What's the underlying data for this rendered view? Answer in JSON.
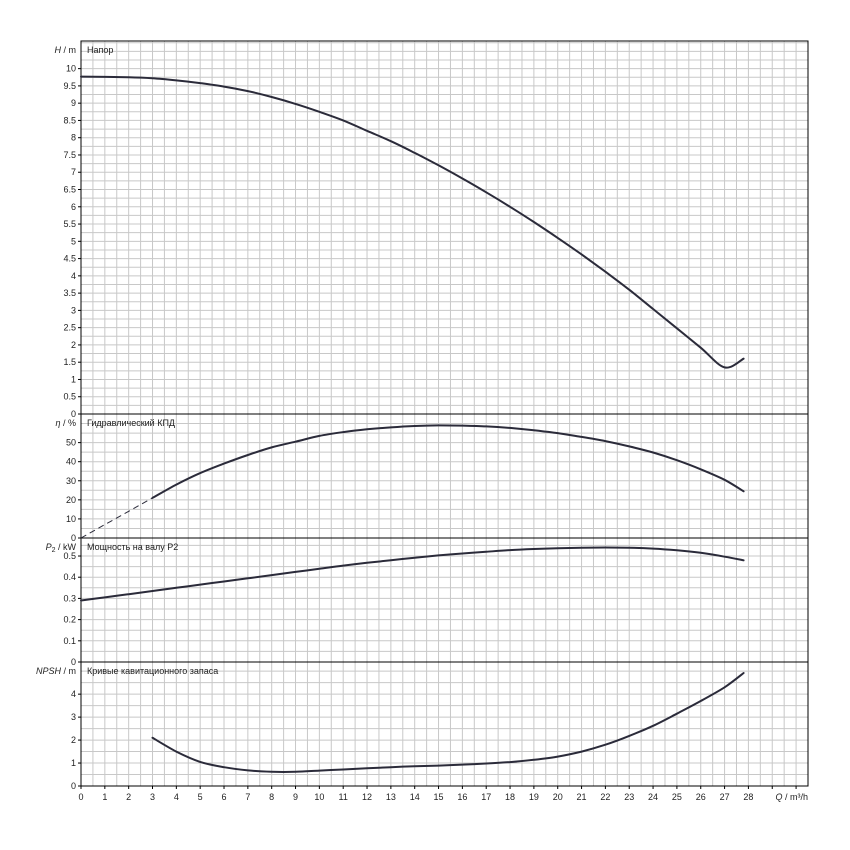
{
  "x_axis": {
    "label": "Q / m³/h",
    "min": 0,
    "max": 30.5,
    "tick_step": 1,
    "label_max": 28,
    "grid_step": 0.5
  },
  "chart_data": [
    {
      "type": "line",
      "title": "Напор",
      "ylabel": "H / m",
      "ylim": [
        0,
        10.8
      ],
      "y_tick_step": 0.5,
      "y_label_max": 10,
      "series": [
        {
          "values_x": [
            0,
            2,
            3,
            4,
            5,
            6,
            7,
            8,
            9,
            10,
            11,
            12,
            13,
            14,
            15,
            16,
            17,
            18,
            19,
            20,
            21,
            22,
            23,
            24,
            25,
            26,
            27,
            27.8
          ],
          "values_y": [
            9.77,
            9.75,
            9.72,
            9.66,
            9.58,
            9.48,
            9.35,
            9.18,
            8.98,
            8.75,
            8.5,
            8.2,
            7.9,
            7.56,
            7.2,
            6.82,
            6.42,
            6.0,
            5.56,
            5.1,
            4.62,
            4.12,
            3.6,
            3.04,
            2.48,
            1.92,
            1.35,
            1.6
          ]
        }
      ]
    },
    {
      "type": "line",
      "title": "Гидравлический КПД",
      "ylabel": "η / %",
      "ylim": [
        0,
        65
      ],
      "y_tick_step": 10,
      "y_label_max": 50,
      "series": [
        {
          "dashed_x": [
            0,
            1,
            2,
            3
          ],
          "dashed_y": [
            0,
            7,
            14,
            21
          ],
          "values_x": [
            3,
            4,
            5,
            6,
            7,
            8,
            9,
            10,
            11,
            12,
            13,
            14,
            15,
            16,
            17,
            18,
            19,
            20,
            21,
            22,
            23,
            24,
            25,
            26,
            27,
            27.8
          ],
          "values_y": [
            21,
            28,
            34,
            39,
            43.5,
            47.5,
            50.5,
            53.5,
            55.5,
            57,
            58,
            58.7,
            59,
            58.9,
            58.5,
            57.7,
            56.5,
            55,
            53,
            50.8,
            48,
            44.8,
            40.8,
            36,
            30.5,
            24.5
          ]
        }
      ]
    },
    {
      "type": "line",
      "title": "Мощность на валу P2",
      "ylabel_main": "P",
      "ylabel_sub": "2",
      "ylabel_unit": " / kW",
      "ylim": [
        0,
        0.585
      ],
      "y_tick_step": 0.1,
      "y_label_max": 0.5,
      "series": [
        {
          "values_x": [
            0,
            1,
            2,
            3,
            4,
            5,
            6,
            7,
            8,
            9,
            10,
            11,
            12,
            13,
            14,
            15,
            16,
            17,
            18,
            19,
            20,
            21,
            22,
            23,
            24,
            25,
            26,
            27,
            27.8
          ],
          "values_y": [
            0.29,
            0.305,
            0.32,
            0.335,
            0.35,
            0.365,
            0.38,
            0.395,
            0.41,
            0.425,
            0.44,
            0.455,
            0.468,
            0.48,
            0.492,
            0.503,
            0.512,
            0.52,
            0.528,
            0.533,
            0.537,
            0.539,
            0.54,
            0.539,
            0.535,
            0.527,
            0.515,
            0.497,
            0.48
          ]
        }
      ]
    },
    {
      "type": "line",
      "title": "Кривые кавитационного запаса",
      "ylabel": "NPSH / m",
      "ylim": [
        0,
        5.4
      ],
      "y_tick_step": 1,
      "y_label_max": 4,
      "series": [
        {
          "values_x": [
            3,
            4,
            5,
            6,
            7,
            8,
            9,
            10,
            11,
            12,
            13,
            14,
            15,
            16,
            17,
            18,
            19,
            20,
            21,
            22,
            23,
            24,
            25,
            26,
            27,
            27.8
          ],
          "values_y": [
            2.1,
            1.5,
            1.05,
            0.82,
            0.68,
            0.62,
            0.62,
            0.67,
            0.72,
            0.77,
            0.82,
            0.86,
            0.89,
            0.93,
            0.98,
            1.04,
            1.14,
            1.28,
            1.5,
            1.8,
            2.18,
            2.62,
            3.15,
            3.7,
            4.3,
            4.92
          ]
        }
      ]
    }
  ]
}
